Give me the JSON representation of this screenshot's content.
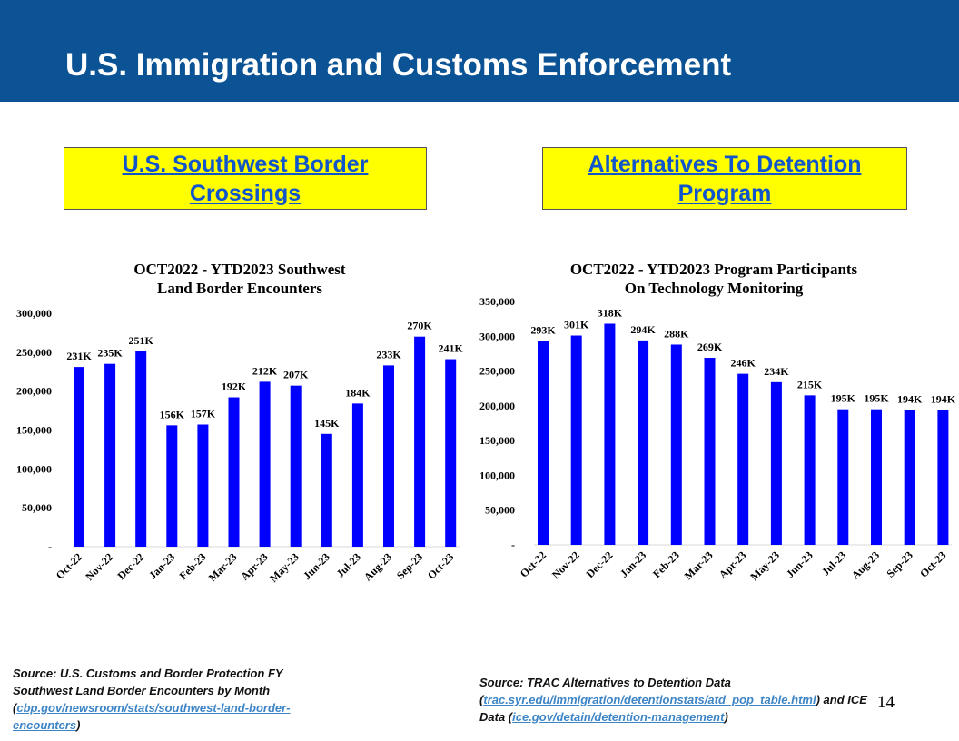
{
  "title": "U.S. Immigration and Customs Enforcement",
  "boxes": {
    "left": "U.S. Southwest Border Crossings",
    "right": "Alternatives To Detention Program"
  },
  "colors": {
    "header": "#0b5394",
    "box": "#ffff00",
    "bar": "#0000ff",
    "link": "#3d85c6"
  },
  "chart_data": [
    {
      "type": "bar",
      "title": [
        "OCT2022 - YTD2023 Southwest",
        "Land Border Encounters"
      ],
      "categories": [
        "Oct-22",
        "Nov-22",
        "Dec-22",
        "Jan-23",
        "Feb-23",
        "Mar-23",
        "Apr-23",
        "May-23",
        "Jun-23",
        "Jul-23",
        "Aug-23",
        "Sep-23",
        "Oct-23"
      ],
      "values": [
        231000,
        235000,
        251000,
        156000,
        157000,
        192000,
        212000,
        207000,
        145000,
        184000,
        233000,
        270000,
        241000
      ],
      "labels": [
        "231K",
        "235K",
        "251K",
        "156K",
        "157K",
        "192K",
        "212K",
        "207K",
        "145K",
        "184K",
        "233K",
        "270K",
        "241K"
      ],
      "yticks": [
        "-",
        "50,000",
        "100,000",
        "150,000",
        "200,000",
        "250,000",
        "300,000"
      ],
      "ylim": [
        0,
        300000
      ],
      "grid": false
    },
    {
      "type": "bar",
      "title": [
        "OCT2022 - YTD2023 Program Participants",
        "On Technology Monitoring"
      ],
      "categories": [
        "Oct-22",
        "Nov-22",
        "Dec-22",
        "Jan-23",
        "Feb-23",
        "Mar-23",
        "Apr-23",
        "May-23",
        "Jun-23",
        "Jul-23",
        "Aug-23",
        "Sep-23",
        "Oct-23"
      ],
      "values": [
        293000,
        301000,
        318000,
        294000,
        288000,
        269000,
        246000,
        234000,
        215000,
        195000,
        195000,
        194000,
        194000
      ],
      "labels": [
        "293K",
        "301K",
        "318K",
        "294K",
        "288K",
        "269K",
        "246K",
        "234K",
        "215K",
        "195K",
        "195K",
        "194K",
        "194K"
      ],
      "yticks": [
        "-",
        "50,000",
        "100,000",
        "150,000",
        "200,000",
        "250,000",
        "300,000",
        "350,000"
      ],
      "ylim": [
        0,
        350000
      ],
      "grid": false
    }
  ],
  "sources": {
    "left": {
      "pre": "Source: U.S. Customs and Border Protection FY Southwest Land Border Encounters by Month (",
      "link": "cbp.gov/newsroom/stats/southwest-land-border-encounters",
      "post": ")"
    },
    "right": {
      "pre": "Source: TRAC Alternatives to Detention Data (",
      "link1": "trac.syr.edu/immigration/detentionstats/atd_pop_table.html",
      "mid": ") and ICE Data (",
      "link2": "ice.gov/detain/detention-management",
      "post": ")"
    }
  },
  "page_number": "14"
}
